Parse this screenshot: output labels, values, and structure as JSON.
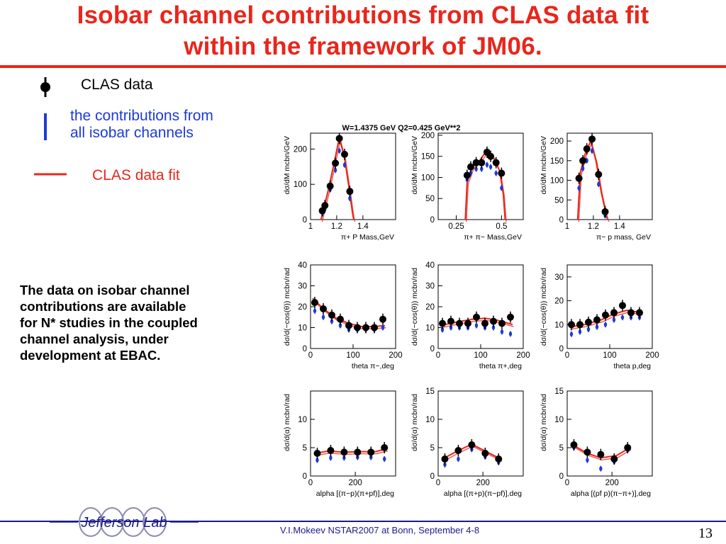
{
  "title": [
    "Isobar channel contributions from CLAS data fit",
    "within the framework of JM06."
  ],
  "legend": {
    "data_label": "CLAS data",
    "contrib_label": [
      "the contributions from",
      "all isobar channels"
    ],
    "fit_label": "CLAS data fit"
  },
  "note": " The data on isobar channel\ncontributions  are available\nfor N* studies  in the coupled\nchannel analysis,  under\ndevelopment at  EBAC.",
  "footer": "V.I.Mokeev   NSTAR2007 at Bonn, September  4-8",
  "page_number": "13",
  "logo_text": "Jefferson Lab",
  "colors": {
    "title": "#e8261c",
    "data": "#000000",
    "contrib": "#1f3ad8",
    "fit": "#e8261c",
    "footer": "#1a1a8c"
  },
  "chart_data": [
    {
      "type": "scatter",
      "panel": "row1-col1",
      "title": "W=1.4375 GeV   Q2=0.425 GeV**2",
      "xlabel": "π+ P Mass,GeV",
      "ylabel": "dσ/dM mcbn/GeV",
      "xlim": [
        1.0,
        1.65
      ],
      "ylim": [
        0,
        245
      ],
      "xticks": [
        1,
        1.2,
        1.4
      ],
      "yticks": [
        0,
        100,
        200
      ],
      "data": [
        [
          1.09,
          25
        ],
        [
          1.11,
          40
        ],
        [
          1.15,
          95
        ],
        [
          1.19,
          160
        ],
        [
          1.22,
          230
        ],
        [
          1.26,
          185
        ],
        [
          1.3,
          80
        ]
      ],
      "contrib": [
        [
          1.09,
          18
        ],
        [
          1.11,
          30
        ],
        [
          1.15,
          85
        ],
        [
          1.19,
          140
        ],
        [
          1.22,
          195
        ],
        [
          1.26,
          155
        ],
        [
          1.3,
          60
        ]
      ],
      "fit": [
        [
          1.08,
          0
        ],
        [
          1.1,
          30
        ],
        [
          1.14,
          90
        ],
        [
          1.18,
          160
        ],
        [
          1.22,
          232
        ],
        [
          1.26,
          175
        ],
        [
          1.3,
          75
        ],
        [
          1.32,
          20
        ],
        [
          1.33,
          0
        ]
      ]
    },
    {
      "type": "scatter",
      "panel": "row1-col2",
      "xlabel": "π+ π− Mass,GeV",
      "ylabel": "dσ/dM mcbn/GeV",
      "xlim": [
        0.15,
        0.62
      ],
      "ylim": [
        0,
        205
      ],
      "xticks": [
        0.25,
        0.5
      ],
      "yticks": [
        0,
        50,
        100,
        150,
        200
      ],
      "data": [
        [
          0.31,
          105
        ],
        [
          0.33,
          125
        ],
        [
          0.36,
          135
        ],
        [
          0.39,
          135
        ],
        [
          0.42,
          160
        ],
        [
          0.44,
          150
        ],
        [
          0.47,
          135
        ],
        [
          0.5,
          110
        ]
      ],
      "contrib": [
        [
          0.31,
          95
        ],
        [
          0.33,
          110
        ],
        [
          0.36,
          120
        ],
        [
          0.39,
          120
        ],
        [
          0.42,
          130
        ],
        [
          0.44,
          125
        ],
        [
          0.47,
          110
        ],
        [
          0.5,
          75
        ]
      ],
      "fit": [
        [
          0.3,
          0
        ],
        [
          0.31,
          90
        ],
        [
          0.34,
          125
        ],
        [
          0.38,
          140
        ],
        [
          0.42,
          165
        ],
        [
          0.46,
          145
        ],
        [
          0.49,
          115
        ],
        [
          0.51,
          60
        ],
        [
          0.52,
          0
        ]
      ]
    },
    {
      "type": "scatter",
      "panel": "row1-col3",
      "xlabel": "π− p mass, GeV",
      "ylabel": "dσ/dM mcbn/GeV",
      "xlim": [
        1.0,
        1.65
      ],
      "ylim": [
        0,
        220
      ],
      "xticks": [
        1,
        1.2,
        1.4
      ],
      "yticks": [
        0,
        50,
        100,
        150,
        200
      ],
      "data": [
        [
          1.09,
          105
        ],
        [
          1.12,
          150
        ],
        [
          1.15,
          180
        ],
        [
          1.19,
          205
        ],
        [
          1.24,
          115
        ],
        [
          1.29,
          20
        ]
      ],
      "contrib": [
        [
          1.09,
          80
        ],
        [
          1.12,
          130
        ],
        [
          1.15,
          150
        ],
        [
          1.19,
          175
        ],
        [
          1.24,
          90
        ],
        [
          1.29,
          10
        ]
      ],
      "fit": [
        [
          1.08,
          0
        ],
        [
          1.1,
          120
        ],
        [
          1.14,
          170
        ],
        [
          1.18,
          200
        ],
        [
          1.22,
          150
        ],
        [
          1.26,
          70
        ],
        [
          1.3,
          10
        ],
        [
          1.31,
          0
        ]
      ]
    },
    {
      "type": "scatter",
      "panel": "row2-col1",
      "xlabel": "theta π−,deg",
      "ylabel": "dσ/d(−cos(θ)) mcbn/rad",
      "xlim": [
        0,
        200
      ],
      "ylim": [
        0,
        40
      ],
      "xticks": [
        0,
        100,
        200
      ],
      "yticks": [
        0,
        10,
        20,
        30,
        40
      ],
      "data": [
        [
          10,
          22
        ],
        [
          30,
          19
        ],
        [
          50,
          16
        ],
        [
          70,
          14
        ],
        [
          90,
          11
        ],
        [
          110,
          10
        ],
        [
          130,
          10
        ],
        [
          150,
          10
        ],
        [
          170,
          14
        ]
      ],
      "contrib": [
        [
          10,
          18
        ],
        [
          30,
          15
        ],
        [
          50,
          13
        ],
        [
          70,
          11
        ],
        [
          90,
          9
        ],
        [
          110,
          9
        ],
        [
          130,
          9
        ],
        [
          150,
          9
        ],
        [
          170,
          10
        ]
      ],
      "fit": [
        [
          5,
          24
        ],
        [
          30,
          19
        ],
        [
          60,
          14.5
        ],
        [
          90,
          12
        ],
        [
          120,
          10.5
        ],
        [
          150,
          10.5
        ],
        [
          175,
          11
        ]
      ]
    },
    {
      "type": "scatter",
      "panel": "row2-col2",
      "xlabel": "theta π+,deg",
      "ylabel": "dσ/d(−cos(θ)) mcbn/rad",
      "xlim": [
        0,
        200
      ],
      "ylim": [
        0,
        40
      ],
      "xticks": [
        0,
        100,
        200
      ],
      "yticks": [
        0,
        10,
        20,
        30,
        40
      ],
      "data": [
        [
          10,
          12
        ],
        [
          30,
          13
        ],
        [
          50,
          12
        ],
        [
          70,
          12
        ],
        [
          90,
          15
        ],
        [
          110,
          12
        ],
        [
          130,
          13
        ],
        [
          150,
          12
        ],
        [
          170,
          15
        ]
      ],
      "contrib": [
        [
          10,
          9
        ],
        [
          30,
          10
        ],
        [
          50,
          10
        ],
        [
          70,
          10
        ],
        [
          90,
          11
        ],
        [
          110,
          10
        ],
        [
          130,
          10
        ],
        [
          150,
          8
        ],
        [
          170,
          7
        ]
      ],
      "fit": [
        [
          5,
          11
        ],
        [
          40,
          12.5
        ],
        [
          80,
          14
        ],
        [
          110,
          14.5
        ],
        [
          140,
          13.5
        ],
        [
          175,
          11.5
        ]
      ]
    },
    {
      "type": "scatter",
      "panel": "row2-col3",
      "xlabel": "theta p,deg",
      "ylabel": "dσ/d(−cos(θ)) mcbn/rad",
      "xlim": [
        0,
        200
      ],
      "ylim": [
        0,
        35
      ],
      "xticks": [
        0,
        100,
        200
      ],
      "yticks": [
        0,
        10,
        20,
        30
      ],
      "data": [
        [
          10,
          10
        ],
        [
          30,
          10
        ],
        [
          50,
          11
        ],
        [
          70,
          12
        ],
        [
          90,
          14
        ],
        [
          110,
          15
        ],
        [
          130,
          18
        ],
        [
          150,
          15
        ],
        [
          170,
          15
        ]
      ],
      "contrib": [
        [
          10,
          6
        ],
        [
          30,
          7
        ],
        [
          50,
          8
        ],
        [
          70,
          9
        ],
        [
          90,
          10
        ],
        [
          110,
          12
        ],
        [
          130,
          13
        ],
        [
          150,
          13
        ],
        [
          170,
          13
        ]
      ],
      "fit": [
        [
          5,
          9
        ],
        [
          40,
          10
        ],
        [
          80,
          12
        ],
        [
          110,
          14.5
        ],
        [
          140,
          16
        ],
        [
          175,
          15
        ]
      ]
    },
    {
      "type": "scatter",
      "panel": "row3-col1",
      "xlabel": "alpha [(π−p)(π+pf)],deg",
      "ylabel": "dσ/d(α) mcbn/rad",
      "xlim": [
        0,
        380
      ],
      "ylim": [
        0,
        15
      ],
      "xticks": [
        0,
        200
      ],
      "yticks": [
        0,
        5,
        10
      ],
      "data": [
        [
          30,
          4
        ],
        [
          90,
          4.5
        ],
        [
          150,
          4.2
        ],
        [
          210,
          4.2
        ],
        [
          270,
          4.2
        ],
        [
          330,
          5
        ]
      ],
      "contrib": [
        [
          30,
          2.8
        ],
        [
          90,
          3.2
        ],
        [
          150,
          3.2
        ],
        [
          210,
          3.3
        ],
        [
          270,
          3.3
        ],
        [
          330,
          3.0
        ]
      ],
      "fit": [
        [
          20,
          4
        ],
        [
          80,
          4.4
        ],
        [
          150,
          4.2
        ],
        [
          220,
          4.3
        ],
        [
          290,
          4.3
        ],
        [
          340,
          4.8
        ]
      ]
    },
    {
      "type": "scatter",
      "panel": "row3-col2",
      "xlabel": "alpha [(π+p)(π−pf)],deg",
      "ylabel": "dσ/d(α) mcbn/rad",
      "xlim": [
        0,
        380
      ],
      "ylim": [
        0,
        15
      ],
      "xticks": [
        0,
        200
      ],
      "yticks": [
        0,
        5,
        10,
        15
      ],
      "data": [
        [
          30,
          3
        ],
        [
          90,
          4.5
        ],
        [
          150,
          5.5
        ],
        [
          210,
          4
        ],
        [
          270,
          3
        ]
      ],
      "contrib": [
        [
          30,
          2
        ],
        [
          90,
          3
        ],
        [
          150,
          4.7
        ],
        [
          210,
          3.4
        ],
        [
          270,
          2.4
        ]
      ],
      "fit": [
        [
          20,
          3
        ],
        [
          90,
          4.5
        ],
        [
          150,
          5.6
        ],
        [
          210,
          4.4
        ],
        [
          280,
          3
        ]
      ]
    },
    {
      "type": "scatter",
      "panel": "row3-col3",
      "xlabel": "alpha [(pf p)(π−π+)],deg",
      "ylabel": "dσ/d(α) mcbn/rad",
      "xlim": [
        0,
        380
      ],
      "ylim": [
        0,
        15
      ],
      "xticks": [
        0,
        200
      ],
      "yticks": [
        0,
        5,
        10,
        15
      ],
      "data": [
        [
          30,
          5.5
        ],
        [
          90,
          4.2
        ],
        [
          150,
          3.8
        ],
        [
          210,
          3
        ],
        [
          270,
          5
        ]
      ],
      "contrib": [
        [
          30,
          5
        ],
        [
          90,
          2.8
        ],
        [
          150,
          1.3
        ],
        [
          210,
          2.5
        ],
        [
          270,
          4.5
        ]
      ],
      "fit": [
        [
          20,
          5.6
        ],
        [
          90,
          4
        ],
        [
          150,
          3.2
        ],
        [
          220,
          3.6
        ],
        [
          280,
          5
        ]
      ]
    }
  ]
}
